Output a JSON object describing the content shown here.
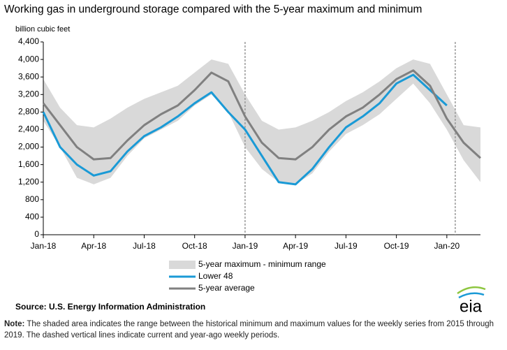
{
  "chart_data": {
    "type": "line",
    "title": "Working gas in underground storage compared with the 5-year maximum and minimum",
    "y_axis_label": "billion cubic feet",
    "categories": [
      "Jan-18",
      null,
      null,
      "Apr-18",
      null,
      null,
      "Jul-18",
      null,
      null,
      "Oct-18",
      null,
      null,
      "Jan-19",
      null,
      null,
      "Apr-19",
      null,
      null,
      "Jul-19",
      null,
      null,
      "Oct-19",
      null,
      null,
      "Jan-20",
      null,
      null
    ],
    "series": [
      {
        "name": "5-year maximum - minimum range",
        "color": "#d9d9d9",
        "type": "band",
        "upper": [
          3550,
          2900,
          2500,
          2450,
          2650,
          2900,
          3100,
          3250,
          3400,
          3700,
          4000,
          3900,
          3200,
          2600,
          2400,
          2450,
          2600,
          2800,
          3050,
          3250,
          3500,
          3800,
          4000,
          3900,
          3200,
          2500,
          2450
        ],
        "lower": [
          2600,
          2000,
          1300,
          1150,
          1300,
          1800,
          2200,
          2400,
          2600,
          2950,
          3200,
          2800,
          2000,
          1500,
          1200,
          1150,
          1400,
          1900,
          2300,
          2500,
          2750,
          3100,
          3450,
          3000,
          2400,
          1700,
          1200
        ]
      },
      {
        "name": "Lower 48",
        "color": "#1a9ad6",
        "values": [
          2800,
          2000,
          1600,
          1350,
          1450,
          1900,
          2250,
          2450,
          2700,
          3000,
          3250,
          2800,
          2400,
          1800,
          1200,
          1150,
          1500,
          2000,
          2450,
          2700,
          3000,
          3450,
          3650,
          3300,
          2950,
          null,
          null
        ]
      },
      {
        "name": "5-year average",
        "color": "#808080",
        "values": [
          3000,
          2500,
          2000,
          1720,
          1750,
          2150,
          2500,
          2750,
          2950,
          3300,
          3700,
          3500,
          2700,
          2100,
          1750,
          1720,
          2000,
          2400,
          2700,
          2900,
          3200,
          3550,
          3750,
          3400,
          2650,
          2100,
          1750
        ]
      }
    ],
    "vlines": [
      12,
      24.5
    ],
    "ylim": [
      0,
      4400
    ],
    "yticks": [
      0,
      400,
      800,
      {
        "value": 1200,
        "label": "1,200"
      },
      {
        "value": 1600,
        "label": "1,600"
      },
      {
        "value": 2000,
        "label": "2,000"
      },
      {
        "value": 2400,
        "label": "2,400"
      },
      {
        "value": 2800,
        "label": "2,800"
      },
      {
        "value": 3200,
        "label": "3,200"
      },
      {
        "value": 3600,
        "label": "3,600"
      },
      {
        "value": 4000,
        "label": "4,000"
      },
      {
        "value": 4400,
        "label": "4,400"
      }
    ],
    "grid": false,
    "source": "Source:  U.S. Energy Information Administration",
    "logo": "eia",
    "note_label": "Note:",
    "note": " The shaded area indicates the range between the historical minimum and maximum values for the weekly series from 2015 through 2019. The dashed vertical lines indicate current and year-ago weekly periods."
  }
}
